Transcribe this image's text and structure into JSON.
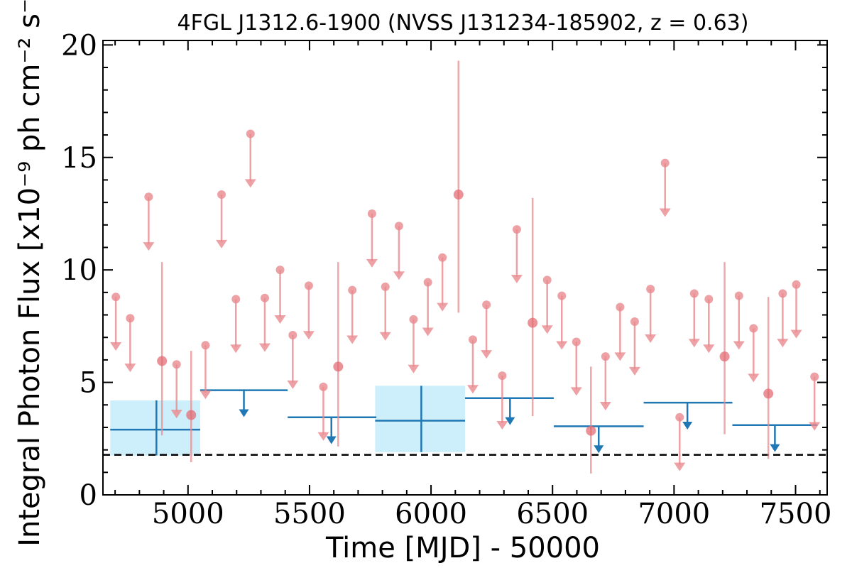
{
  "chart_data": {
    "type": "scatter",
    "title": "4FGL J1312.6-1900 (NVSS J131234-185902, z = 0.63)",
    "xlabel": "Time [MJD] - 50000",
    "ylabel": "Integral Photon Flux [x10⁻⁹ ph cm⁻² s⁻¹]",
    "xlim": [
      4650,
      7630
    ],
    "ylim": [
      0,
      20.2
    ],
    "x_ticks": [
      5000,
      5500,
      6000,
      6500,
      7000,
      7500
    ],
    "x_tick_labels": [
      "5000",
      "5500",
      "6000",
      "6500",
      "7000",
      "7500"
    ],
    "y_ticks": [
      0,
      5,
      10,
      15,
      20
    ],
    "y_tick_labels": [
      "0",
      "5",
      "10",
      "15",
      "20"
    ],
    "grid": false,
    "legend": "none",
    "baseline": 1.78,
    "colors": {
      "short_bins": "#e88a8f",
      "long_bins": "#1f77b4",
      "long_bins_band": "#cdeefb",
      "baseline": "#000000"
    },
    "series": [
      {
        "bin": "short",
        "upper_limits": [
          {
            "x": 4703,
            "y": 8.8
          },
          {
            "x": 4762,
            "y": 7.85
          },
          {
            "x": 4838,
            "y": 13.25
          },
          {
            "x": 4953,
            "y": 5.8
          },
          {
            "x": 5072,
            "y": 6.65
          },
          {
            "x": 5138,
            "y": 13.35
          },
          {
            "x": 5197,
            "y": 8.7
          },
          {
            "x": 5257,
            "y": 16.05
          },
          {
            "x": 5316,
            "y": 8.75
          },
          {
            "x": 5379,
            "y": 10.0
          },
          {
            "x": 5431,
            "y": 7.1
          },
          {
            "x": 5497,
            "y": 9.3
          },
          {
            "x": 5557,
            "y": 4.8
          },
          {
            "x": 5676,
            "y": 9.1
          },
          {
            "x": 5757,
            "y": 12.5
          },
          {
            "x": 5812,
            "y": 9.25
          },
          {
            "x": 5868,
            "y": 11.95
          },
          {
            "x": 5928,
            "y": 7.8
          },
          {
            "x": 5987,
            "y": 9.45
          },
          {
            "x": 6047,
            "y": 10.55
          },
          {
            "x": 6172,
            "y": 6.9
          },
          {
            "x": 6228,
            "y": 8.45
          },
          {
            "x": 6293,
            "y": 5.3
          },
          {
            "x": 6353,
            "y": 11.8
          },
          {
            "x": 6478,
            "y": 9.55
          },
          {
            "x": 6538,
            "y": 8.85
          },
          {
            "x": 6598,
            "y": 6.8
          },
          {
            "x": 6718,
            "y": 6.15
          },
          {
            "x": 6778,
            "y": 8.35
          },
          {
            "x": 6838,
            "y": 7.7
          },
          {
            "x": 6903,
            "y": 9.15
          },
          {
            "x": 6963,
            "y": 14.75
          },
          {
            "x": 7023,
            "y": 3.45
          },
          {
            "x": 7083,
            "y": 8.95
          },
          {
            "x": 7143,
            "y": 8.7
          },
          {
            "x": 7267,
            "y": 8.85
          },
          {
            "x": 7327,
            "y": 7.4
          },
          {
            "x": 7447,
            "y": 8.95
          },
          {
            "x": 7503,
            "y": 9.35
          },
          {
            "x": 7578,
            "y": 5.25
          }
        ],
        "detections": [
          {
            "x": 4893,
            "y": 5.95,
            "err_low": 2.65,
            "err_high": 10.35
          },
          {
            "x": 5013,
            "y": 3.55,
            "err_low": 1.45,
            "err_high": 6.4
          },
          {
            "x": 5618,
            "y": 5.7,
            "err_low": 2.15,
            "err_high": 10.35
          },
          {
            "x": 6113,
            "y": 13.35,
            "err_low": 8.1,
            "err_high": 19.3
          },
          {
            "x": 6418,
            "y": 7.65,
            "err_low": 3.5,
            "err_high": 13.2
          },
          {
            "x": 6658,
            "y": 2.85,
            "err_low": 0.95,
            "err_high": 5.7
          },
          {
            "x": 7208,
            "y": 6.15,
            "err_low": 2.7,
            "err_high": 10.35
          },
          {
            "x": 7388,
            "y": 4.5,
            "err_low": 1.6,
            "err_high": 8.8
          }
        ]
      },
      {
        "bin": "long",
        "detections": [
          {
            "x0": 4680,
            "x1": 5050,
            "xc": 4870,
            "y": 2.9,
            "err_low": 1.75,
            "err_high": 4.2
          },
          {
            "x0": 5770,
            "x1": 6140,
            "xc": 5960,
            "y": 3.3,
            "err_low": 1.9,
            "err_high": 4.85
          }
        ],
        "upper_limits": [
          {
            "x0": 5050,
            "x1": 5410,
            "xc": 5230,
            "y": 4.65
          },
          {
            "x0": 5410,
            "x1": 5775,
            "xc": 5590,
            "y": 3.45
          },
          {
            "x0": 6140,
            "x1": 6505,
            "xc": 6325,
            "y": 4.3
          },
          {
            "x0": 6505,
            "x1": 6875,
            "xc": 6690,
            "y": 3.05
          },
          {
            "x0": 6875,
            "x1": 7240,
            "xc": 7055,
            "y": 4.1
          },
          {
            "x0": 7240,
            "x1": 7590,
            "xc": 7415,
            "y": 3.1
          }
        ]
      }
    ]
  }
}
